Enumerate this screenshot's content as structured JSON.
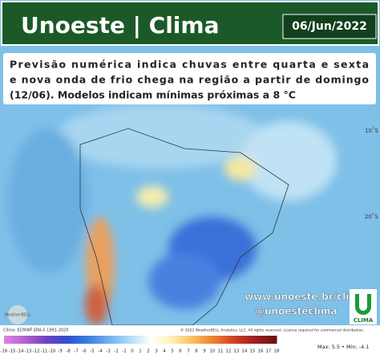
{
  "header": {
    "title": "Unoeste | Clima",
    "date": "06/Jun/2022"
  },
  "summary": {
    "lines": [
      "Previsão numérica indica chuvas entre quarta e sexta",
      "e nova onda de frio chega na região a partir de domingo",
      "(12/06). Modelos indicam mínimas próximas a 8 °C"
    ]
  },
  "map": {
    "lat_labels": [
      "10˚S",
      "20˚S"
    ],
    "website": "www.unoeste.br/clima",
    "handle": "@unoesteclima",
    "logo_text": "CLIMA",
    "brand": "WeatherBELL",
    "source": "Clima: ECMWF ERA-5 1991-2020",
    "copyright": "© 2022 WeatherBELL Analytics, LLC. All rights reserved. License required for commercial distribution."
  },
  "colorbar": {
    "labels": [
      "-16",
      "-15",
      "-14",
      "-13",
      "-12",
      "-11",
      "-10",
      "-9",
      "-8",
      "-7",
      "-6",
      "-5",
      "-4",
      "-3",
      "-2",
      "-1",
      "0",
      "1",
      "2",
      "3",
      "4",
      "5",
      "6",
      "7",
      "8",
      "9",
      "10",
      "11",
      "12",
      "13",
      "14",
      "15",
      "16",
      "17",
      "18"
    ],
    "stats": "Max: 5.5 • Min: -4.1"
  }
}
